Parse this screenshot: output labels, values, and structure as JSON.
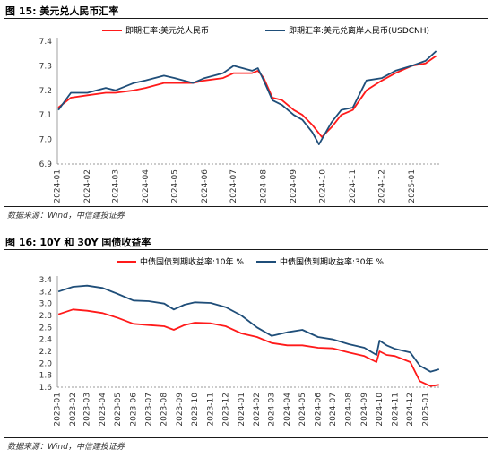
{
  "figure1": {
    "title": "图 15: 美元兑人民币汇率",
    "source": "数据来源：Wind，中信建投证券"
  },
  "figure2": {
    "title": "图 16: 10Y 和 30Y 国债收益率",
    "source": "数据来源：Wind，中信建投证券"
  },
  "colors": {
    "red": "#ff1a1a",
    "navy": "#1f4e79",
    "rule": "#1a1a1a"
  },
  "chart_data": [
    {
      "type": "line",
      "title": "",
      "xlabel": "",
      "ylabel": "",
      "ylim": [
        6.9,
        7.4
      ],
      "yticks": [
        "6.9",
        "7.0",
        "7.1",
        "7.2",
        "7.3",
        "7.4"
      ],
      "xticks": [
        "2024-01",
        "2024-02",
        "2024-03",
        "2024-04",
        "2024-05",
        "2024-06",
        "2024-07",
        "2024-08",
        "2024-09",
        "2024-10",
        "2024-11",
        "2024-12",
        "2025-01"
      ],
      "xrange": [
        "2024-01-01",
        "2025-01-31"
      ],
      "grid": false,
      "legend": "top-center",
      "series": [
        {
          "name": "即期汇率:美元兑人民币",
          "color": "#ff1a1a",
          "x": [
            "2024-01-02",
            "2024-01-15",
            "2024-02-01",
            "2024-02-20",
            "2024-03-01",
            "2024-03-20",
            "2024-04-01",
            "2024-04-20",
            "2024-05-01",
            "2024-05-20",
            "2024-06-01",
            "2024-06-20",
            "2024-07-01",
            "2024-07-20",
            "2024-07-26",
            "2024-08-01",
            "2024-08-10",
            "2024-08-20",
            "2024-09-01",
            "2024-09-10",
            "2024-09-20",
            "2024-09-30",
            "2024-10-10",
            "2024-10-20",
            "2024-11-01",
            "2024-11-15",
            "2024-12-01",
            "2024-12-15",
            "2025-01-01",
            "2025-01-15",
            "2025-01-26"
          ],
          "y": [
            7.13,
            7.17,
            7.18,
            7.19,
            7.19,
            7.2,
            7.21,
            7.23,
            7.23,
            7.23,
            7.24,
            7.25,
            7.27,
            7.27,
            7.28,
            7.25,
            7.17,
            7.16,
            7.12,
            7.1,
            7.06,
            7.01,
            7.05,
            7.1,
            7.12,
            7.2,
            7.24,
            7.27,
            7.3,
            7.31,
            7.34
          ]
        },
        {
          "name": "即期汇率:美元兑离岸人民币(USDCNH)",
          "color": "#1f4e79",
          "x": [
            "2024-01-02",
            "2024-01-15",
            "2024-02-01",
            "2024-02-20",
            "2024-03-01",
            "2024-03-20",
            "2024-04-01",
            "2024-04-20",
            "2024-05-01",
            "2024-05-20",
            "2024-06-01",
            "2024-06-20",
            "2024-07-01",
            "2024-07-20",
            "2024-07-26",
            "2024-08-01",
            "2024-08-10",
            "2024-08-20",
            "2024-09-01",
            "2024-09-10",
            "2024-09-20",
            "2024-09-27",
            "2024-10-10",
            "2024-10-20",
            "2024-11-01",
            "2024-11-15",
            "2024-12-01",
            "2024-12-15",
            "2025-01-01",
            "2025-01-15",
            "2025-01-26"
          ],
          "y": [
            7.12,
            7.19,
            7.19,
            7.21,
            7.2,
            7.23,
            7.24,
            7.26,
            7.25,
            7.23,
            7.25,
            7.27,
            7.3,
            7.28,
            7.29,
            7.24,
            7.16,
            7.14,
            7.1,
            7.08,
            7.03,
            6.98,
            7.07,
            7.12,
            7.13,
            7.24,
            7.25,
            7.28,
            7.3,
            7.32,
            7.36
          ]
        }
      ]
    },
    {
      "type": "line",
      "title": "",
      "xlabel": "",
      "ylabel": "",
      "ylim": [
        1.6,
        3.4
      ],
      "yticks": [
        "1.6",
        "1.8",
        "2.0",
        "2.2",
        "2.4",
        "2.6",
        "2.8",
        "3.0",
        "3.2",
        "3.4"
      ],
      "xticks": [
        "2023-01",
        "2023-02",
        "2023-03",
        "2023-04",
        "2023-05",
        "2023-06",
        "2023-07",
        "2023-08",
        "2023-09",
        "2023-10",
        "2023-11",
        "2023-12",
        "2024-01",
        "2024-02",
        "2024-03",
        "2024-04",
        "2024-05",
        "2024-06",
        "2024-07",
        "2024-08",
        "2024-09",
        "2024-10",
        "2024-11",
        "2024-12",
        "2025-01"
      ],
      "xrange": [
        "2023-01-01",
        "2025-01-31"
      ],
      "grid": false,
      "legend": "top-center",
      "series": [
        {
          "name": "中债国债到期收益率:10年 %",
          "color": "#ff1a1a",
          "x": [
            "2023-01-03",
            "2023-02-01",
            "2023-03-01",
            "2023-04-01",
            "2023-05-01",
            "2023-06-01",
            "2023-07-01",
            "2023-08-01",
            "2023-08-20",
            "2023-09-10",
            "2023-10-01",
            "2023-11-01",
            "2023-12-01",
            "2024-01-01",
            "2024-02-01",
            "2024-03-01",
            "2024-04-01",
            "2024-05-01",
            "2024-06-01",
            "2024-07-01",
            "2024-08-01",
            "2024-09-01",
            "2024-09-25",
            "2024-10-01",
            "2024-10-15",
            "2024-11-01",
            "2024-12-01",
            "2024-12-20",
            "2025-01-10",
            "2025-01-27"
          ],
          "y": [
            2.82,
            2.9,
            2.88,
            2.84,
            2.76,
            2.66,
            2.64,
            2.62,
            2.56,
            2.64,
            2.68,
            2.67,
            2.62,
            2.5,
            2.44,
            2.34,
            2.3,
            2.3,
            2.26,
            2.25,
            2.18,
            2.12,
            2.02,
            2.2,
            2.14,
            2.12,
            2.02,
            1.7,
            1.62,
            1.64
          ]
        },
        {
          "name": "中债国债到期收益率:30年 %",
          "color": "#1f4e79",
          "x": [
            "2023-01-03",
            "2023-02-01",
            "2023-03-01",
            "2023-04-01",
            "2023-05-01",
            "2023-06-01",
            "2023-07-01",
            "2023-08-01",
            "2023-08-20",
            "2023-09-10",
            "2023-10-01",
            "2023-11-01",
            "2023-12-01",
            "2024-01-01",
            "2024-02-01",
            "2024-03-01",
            "2024-04-01",
            "2024-05-01",
            "2024-06-01",
            "2024-07-01",
            "2024-08-01",
            "2024-09-01",
            "2024-09-25",
            "2024-10-01",
            "2024-10-15",
            "2024-11-01",
            "2024-12-01",
            "2024-12-20",
            "2025-01-10",
            "2025-01-27"
          ],
          "y": [
            3.2,
            3.28,
            3.3,
            3.26,
            3.16,
            3.05,
            3.04,
            3.0,
            2.9,
            2.98,
            3.02,
            3.01,
            2.94,
            2.8,
            2.6,
            2.46,
            2.52,
            2.56,
            2.44,
            2.4,
            2.32,
            2.26,
            2.14,
            2.38,
            2.3,
            2.24,
            2.18,
            1.96,
            1.86,
            1.9
          ]
        }
      ]
    }
  ]
}
